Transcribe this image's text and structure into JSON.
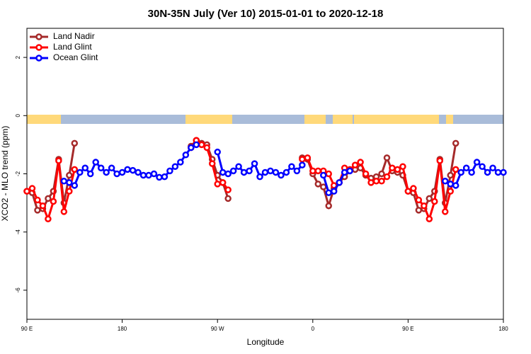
{
  "chart_data": {
    "type": "line",
    "title": "30N-35N July (Ver 10)   2015-01-01 to 2020-12-18",
    "x_label": "Longitude",
    "y_label": "XCO2 - MLO trend (ppm)",
    "x": [
      90,
      95,
      100,
      105,
      110,
      115,
      120,
      125,
      130,
      135,
      140,
      145,
      150,
      155,
      160,
      165,
      170,
      175,
      180,
      185,
      190,
      195,
      200,
      205,
      210,
      215,
      220,
      225,
      230,
      235,
      240,
      245,
      250,
      255,
      260,
      265,
      270,
      275,
      280,
      285,
      290,
      295,
      300,
      305,
      310,
      315,
      320,
      325,
      330,
      335,
      340,
      345,
      350,
      355,
      360,
      365,
      370,
      375,
      380,
      385,
      390,
      395,
      400,
      405,
      410,
      415,
      420,
      425,
      430,
      435,
      440,
      445,
      450,
      455,
      460,
      465,
      470,
      475,
      480,
      485,
      490,
      495,
      500,
      505,
      510,
      515,
      520,
      525,
      530,
      535,
      540
    ],
    "series": [
      {
        "name": "Land Nadir",
        "color": "#a52a2a",
        "values": [
          -2.6,
          -2.65,
          -3.25,
          -3.2,
          -2.85,
          -2.6,
          -1.5,
          -3.0,
          -2.05,
          -0.95,
          null,
          null,
          null,
          null,
          null,
          null,
          null,
          null,
          null,
          null,
          null,
          null,
          null,
          null,
          null,
          null,
          null,
          null,
          null,
          null,
          null,
          -1.05,
          -0.85,
          -0.95,
          -1.0,
          -1.5,
          -2.05,
          -2.3,
          -2.85,
          null,
          null,
          null,
          null,
          null,
          null,
          null,
          null,
          null,
          null,
          null,
          null,
          null,
          -1.45,
          -1.5,
          -2.0,
          -2.35,
          -2.45,
          -3.1,
          -2.5,
          -2.3,
          -2.1,
          -1.9,
          -1.85,
          -1.8,
          -2.05,
          -2.15,
          -2.1,
          -2.0,
          -1.45,
          -1.9,
          -1.95,
          -2.05,
          -2.6,
          -2.65,
          -3.25,
          -3.2,
          -2.85,
          -2.6,
          -1.5,
          -3.0,
          -2.05,
          -0.95,
          null,
          null,
          null,
          null,
          null,
          null,
          null,
          null,
          null
        ]
      },
      {
        "name": "Land Glint",
        "color": "#ff0000",
        "values": [
          -2.6,
          -2.5,
          -2.9,
          -3.1,
          -3.55,
          -2.95,
          -1.55,
          -3.3,
          -2.6,
          -1.85,
          null,
          null,
          null,
          null,
          null,
          null,
          null,
          null,
          null,
          null,
          null,
          null,
          null,
          null,
          null,
          null,
          null,
          null,
          null,
          null,
          null,
          -1.1,
          -0.85,
          -1.0,
          -1.1,
          -1.65,
          -2.35,
          -2.3,
          -2.55,
          null,
          null,
          null,
          null,
          null,
          null,
          null,
          null,
          null,
          null,
          null,
          null,
          null,
          -1.5,
          -1.45,
          -1.9,
          -1.9,
          -1.9,
          -2.0,
          -2.4,
          -2.3,
          -1.8,
          -1.85,
          -1.7,
          -1.6,
          -2.0,
          -2.3,
          -2.25,
          -2.25,
          -2.1,
          -1.8,
          -1.85,
          -1.75,
          -2.6,
          -2.5,
          -2.9,
          -3.1,
          -3.55,
          -2.95,
          -1.55,
          -3.3,
          -2.6,
          -1.85,
          null,
          null,
          null,
          null,
          null,
          null,
          null,
          null,
          null
        ]
      },
      {
        "name": "Ocean Glint",
        "color": "#0000ff",
        "values": [
          null,
          null,
          null,
          null,
          null,
          null,
          null,
          -2.25,
          -2.3,
          -2.4,
          -1.95,
          -1.8,
          -2.0,
          -1.6,
          -1.8,
          -1.95,
          -1.8,
          -2.0,
          -1.95,
          -1.85,
          -1.88,
          -1.95,
          -2.05,
          -2.05,
          -2.0,
          -2.12,
          -2.1,
          -1.9,
          -1.75,
          -1.6,
          -1.35,
          -1.1,
          -1.0,
          null,
          null,
          null,
          -1.25,
          -1.95,
          -2.0,
          -1.9,
          -1.75,
          -1.95,
          -1.9,
          -1.65,
          -2.1,
          -1.95,
          -1.9,
          -1.95,
          -2.05,
          -1.95,
          -1.75,
          -1.9,
          -1.7,
          null,
          null,
          null,
          -2.05,
          -2.65,
          -2.6,
          -2.3,
          -1.95,
          -1.9,
          null,
          null,
          null,
          null,
          null,
          null,
          null,
          null,
          null,
          null,
          null,
          null,
          null,
          null,
          null,
          null,
          null,
          -2.25,
          -2.35,
          -2.4,
          -1.95,
          -1.8,
          -1.95,
          -1.6,
          -1.75,
          -1.95,
          -1.8,
          -1.95,
          -1.95
        ]
      }
    ],
    "xlim": [
      90,
      540
    ],
    "xticks": [
      {
        "value": 90,
        "label": "90 E"
      },
      180,
      {
        "value": 270,
        "label": "90 W"
      },
      {
        "value": 360,
        "label": "0"
      },
      {
        "value": 450,
        "label": "90 E"
      },
      {
        "value": 540,
        "label": "180"
      }
    ],
    "ylim": [
      -7,
      3
    ],
    "yticks": [
      2,
      0,
      -2,
      -4,
      -6
    ],
    "legend": "top-left"
  }
}
